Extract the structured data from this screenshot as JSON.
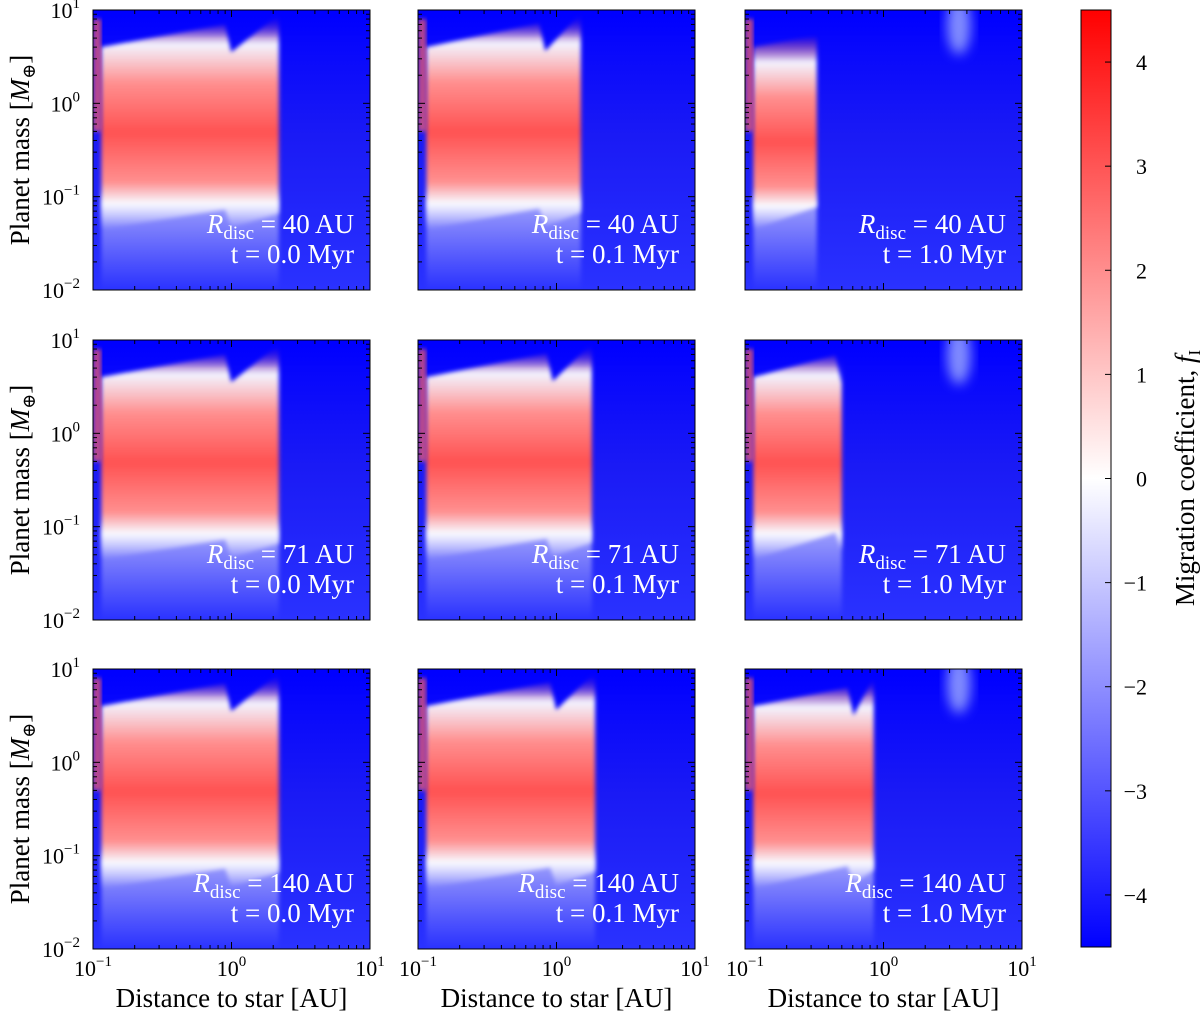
{
  "chart_data": {
    "type": "heatmap",
    "panel_grid": {
      "rows": 3,
      "cols": 3
    },
    "x_axis": {
      "label": "Distance to star [AU]",
      "scale": "log",
      "lim": [
        0.1,
        10
      ],
      "ticks": [
        {
          "value": 0.1,
          "base": "10",
          "exp": "−1"
        },
        {
          "value": 1,
          "base": "10",
          "exp": "0"
        },
        {
          "value": 10,
          "base": "10",
          "exp": "1"
        }
      ]
    },
    "y_axis": {
      "label_main": "Planet mass [",
      "label_symbol": "M",
      "label_sub": "⊕",
      "label_end": "]",
      "scale": "log",
      "lim": [
        0.01,
        10
      ],
      "ticks": [
        {
          "value": 10,
          "base": "10",
          "exp": "1"
        },
        {
          "value": 1,
          "base": "10",
          "exp": "0"
        },
        {
          "value": 0.1,
          "base": "10",
          "exp": "−1"
        },
        {
          "value": 0.01,
          "base": "10",
          "exp": "−2"
        }
      ]
    },
    "colorbar": {
      "label": "Migration coefficient, ",
      "label_symbol": "f",
      "label_sub": "I",
      "lim": [
        -4.5,
        4.5
      ],
      "ticks": [
        {
          "value": 4,
          "label": "4"
        },
        {
          "value": 3,
          "label": "3"
        },
        {
          "value": 2,
          "label": "2"
        },
        {
          "value": 1,
          "label": "1"
        },
        {
          "value": 0,
          "label": "0"
        },
        {
          "value": -1,
          "label": "−1"
        },
        {
          "value": -2,
          "label": "−2"
        },
        {
          "value": -3,
          "label": "−3"
        },
        {
          "value": -4,
          "label": "−4"
        }
      ],
      "colormap": "bwr"
    },
    "panels": [
      {
        "row": 0,
        "col": 0,
        "R_symbol": "R",
        "R_sub": "disc",
        "R_value": " = 40 AU",
        "time_text": "t = 0.0 Myr",
        "outer_edge_AU": 2.2,
        "break_AU": 0.9
      },
      {
        "row": 0,
        "col": 1,
        "R_symbol": "R",
        "R_sub": "disc",
        "R_value": " = 40 AU",
        "time_text": "t = 0.1 Myr",
        "outer_edge_AU": 1.5,
        "break_AU": 0.75
      },
      {
        "row": 0,
        "col": 2,
        "R_symbol": "R",
        "R_sub": "disc",
        "R_value": " = 40 AU",
        "time_text": "t = 1.0 Myr",
        "outer_edge_AU": 0.33,
        "break_AU": null
      },
      {
        "row": 1,
        "col": 0,
        "R_symbol": "R",
        "R_sub": "disc",
        "R_value": " = 71 AU",
        "time_text": "t = 0.0 Myr",
        "outer_edge_AU": 2.2,
        "break_AU": 0.9
      },
      {
        "row": 1,
        "col": 1,
        "R_symbol": "R",
        "R_sub": "disc",
        "R_value": " = 71 AU",
        "time_text": "t = 0.1 Myr",
        "outer_edge_AU": 1.8,
        "break_AU": 0.85
      },
      {
        "row": 1,
        "col": 2,
        "R_symbol": "R",
        "R_sub": "disc",
        "R_value": " = 71 AU",
        "time_text": "t = 1.0 Myr",
        "outer_edge_AU": 0.5,
        "break_AU": 0.45
      },
      {
        "row": 2,
        "col": 0,
        "R_symbol": "R",
        "R_sub": "disc",
        "R_value": " = 140 AU",
        "time_text": "t = 0.0 Myr",
        "outer_edge_AU": 2.2,
        "break_AU": 0.9
      },
      {
        "row": 2,
        "col": 1,
        "R_symbol": "R",
        "R_sub": "disc",
        "R_value": " = 140 AU",
        "time_text": "t = 0.1 Myr",
        "outer_edge_AU": 1.9,
        "break_AU": 0.9
      },
      {
        "row": 2,
        "col": 2,
        "R_symbol": "R",
        "R_sub": "disc",
        "R_value": " = 140 AU",
        "time_text": "t = 1.0 Myr",
        "outer_edge_AU": 0.85,
        "break_AU": 0.55
      }
    ]
  }
}
